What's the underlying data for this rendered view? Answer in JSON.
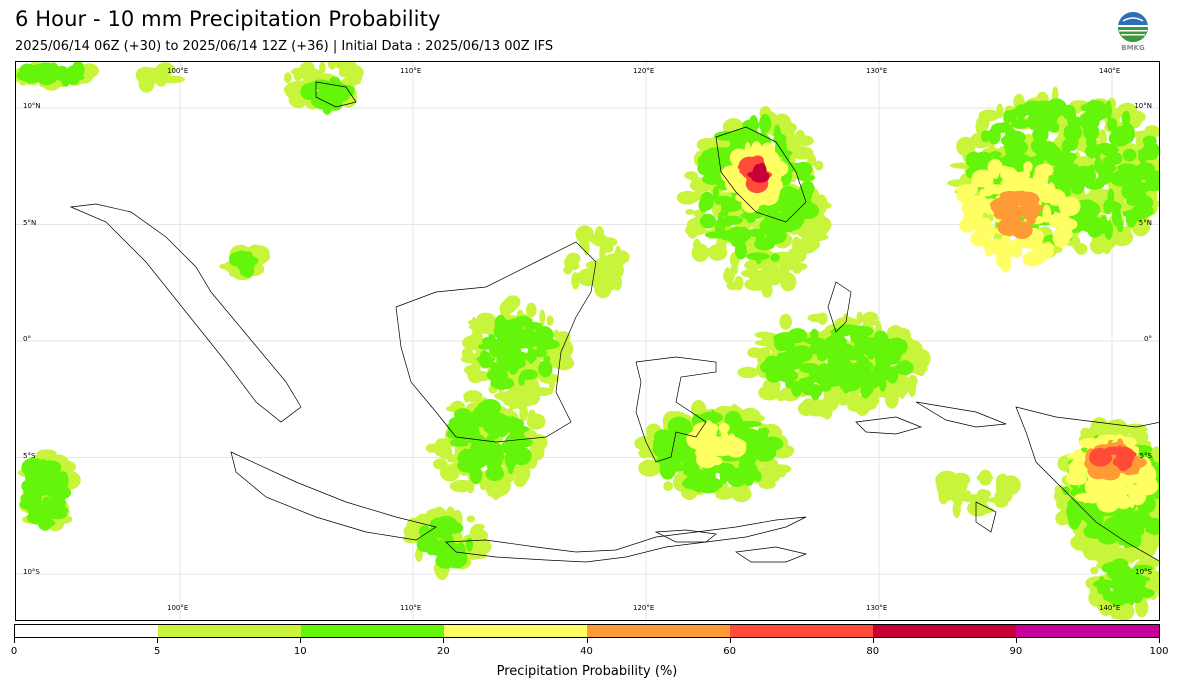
{
  "header": {
    "title": "6 Hour - 10 mm Precipitation Probability",
    "subtitle": "2025/06/14 06Z (+30) to 2025/06/14 12Z (+36) | Initial Data : 2025/06/13 00Z IFS",
    "logo_text": "BMKG",
    "logo_icon": "bmkg-globe-logo"
  },
  "map": {
    "lon_labels": [
      "100°E",
      "110°E",
      "120°E",
      "130°E",
      "140°E"
    ],
    "lat_labels": [
      "10°N",
      "5°N",
      "0°",
      "5°S",
      "10°S"
    ],
    "gridlines": true
  },
  "colorbar": {
    "title": "Precipitation Probability (%)",
    "tick_labels": [
      "0",
      "5",
      "10",
      "20",
      "40",
      "60",
      "80",
      "90",
      "100"
    ],
    "colors": [
      "#ffffff",
      "#c8f53c",
      "#64f50a",
      "#ffff64",
      "#ff9b37",
      "#ff4b37",
      "#c80037",
      "#c8009b"
    ]
  }
}
